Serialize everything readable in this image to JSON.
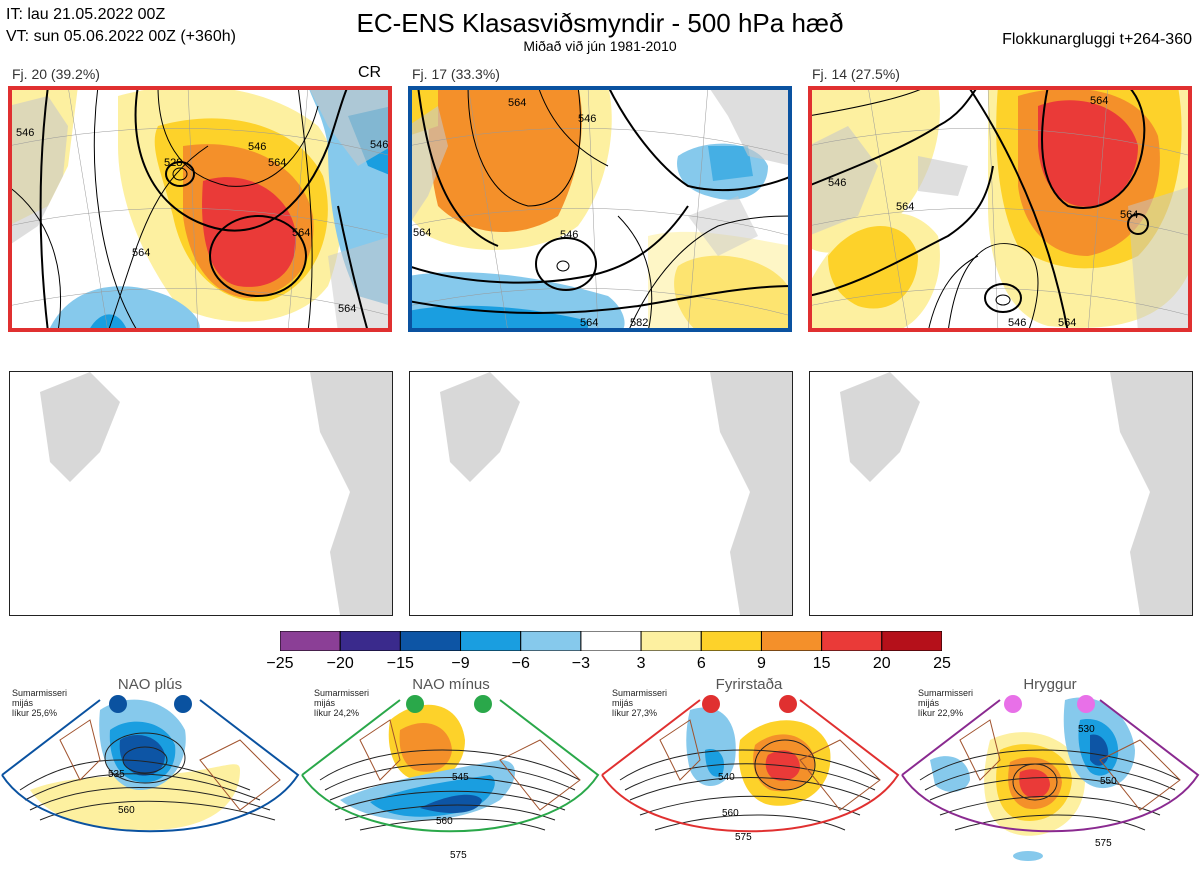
{
  "header": {
    "it_line": "IT: lau 21.05.2022 00Z",
    "vt_line": "VT: sun 05.06.2022 00Z  (+360h)",
    "title": "EC-ENS Klasasviðsmyndir - 500 hPa hæð",
    "subtitle": "Miðað við jún 1981-2010",
    "window": "Flokkunargluggi t+264-360"
  },
  "panels": [
    {
      "label": "Fj. 20 (39.2%)",
      "tag": "CR",
      "frame_color": "#e03030",
      "contours": [
        "546",
        "528",
        "546",
        "564",
        "564",
        "564",
        "564",
        "546"
      ]
    },
    {
      "label": "Fj. 17 (33.3%)",
      "tag": "",
      "frame_color": "#0a52a0",
      "contours": [
        "564",
        "546",
        "546",
        "564",
        "564",
        "582"
      ]
    },
    {
      "label": "Fj. 14 (27.5%)",
      "tag": "",
      "frame_color": "#e03030",
      "contours": [
        "564",
        "546",
        "564",
        "564",
        "564",
        "546"
      ]
    }
  ],
  "colorbar": {
    "ticks": [
      "−25",
      "−20",
      "−15",
      "−9",
      "−6",
      "−3",
      "3",
      "6",
      "9",
      "15",
      "20",
      "25"
    ],
    "colors": [
      "#8b3f96",
      "#3a2a8c",
      "#0d55a5",
      "#1a9ee0",
      "#86c9ec",
      "#ffffff",
      "#fdf0a0",
      "#fdd22a",
      "#f4902a",
      "#ea3a38",
      "#b5101a"
    ]
  },
  "regimes": [
    {
      "title": "NAO plús",
      "season": "Sumarmisseri",
      "month": "mijás",
      "prob": "líkur 25,6%",
      "color": "#0a52a0",
      "contours": [
        "535",
        "560"
      ]
    },
    {
      "title": "NAO mínus",
      "season": "Sumarmisseri",
      "month": "mijás",
      "prob": "líkur 24,2%",
      "color": "#2aa84a",
      "contours": [
        "545",
        "560",
        "575"
      ]
    },
    {
      "title": "Fyrirstaða",
      "season": "Sumarmisseri",
      "month": "mijás",
      "prob": "líkur 27,3%",
      "color": "#e03030",
      "contours": [
        "540",
        "560",
        "575"
      ]
    },
    {
      "title": "Hryggur",
      "season": "Sumarmisseri",
      "month": "mijás",
      "prob": "líkur 22,9%",
      "color": "#8a2a90",
      "contours": [
        "530",
        "550",
        "575"
      ]
    }
  ]
}
